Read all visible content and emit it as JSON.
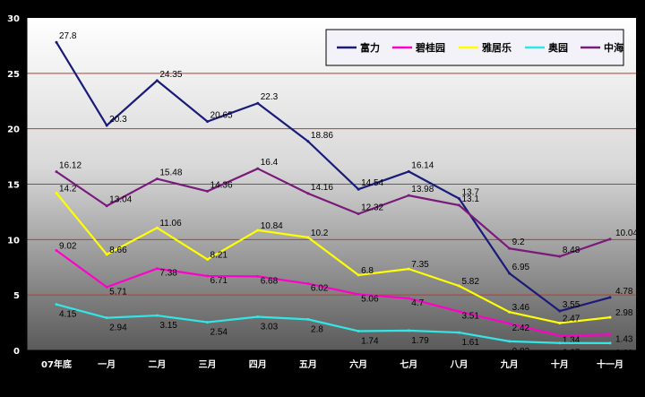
{
  "chart_data": {
    "type": "line",
    "categories": [
      "07年底",
      "一月",
      "二月",
      "三月",
      "四月",
      "五月",
      "六月",
      "七月",
      "八月",
      "九月",
      "十月",
      "十一月"
    ],
    "yticks": [
      0,
      5,
      10,
      15,
      20,
      25,
      30
    ],
    "ylim": [
      0,
      30
    ],
    "grid": true,
    "legend": "top-right",
    "series": [
      {
        "name": "富力",
        "color": "#1a1a7a",
        "values": [
          27.8,
          20.3,
          24.35,
          20.65,
          22.3,
          18.86,
          14.54,
          16.14,
          13.7,
          6.95,
          3.55,
          4.78
        ]
      },
      {
        "name": "碧桂园",
        "color": "#ff00cc",
        "values": [
          9.02,
          5.71,
          7.38,
          6.71,
          6.68,
          6.02,
          5.06,
          4.7,
          3.51,
          2.42,
          1.34,
          1.43
        ]
      },
      {
        "name": "雅居乐",
        "color": "#ffff00",
        "values": [
          14.2,
          8.66,
          11.06,
          8.21,
          10.84,
          10.2,
          6.8,
          7.35,
          5.82,
          3.46,
          2.47,
          2.98
        ]
      },
      {
        "name": "奥园",
        "color": "#33e6e6",
        "values": [
          4.15,
          2.94,
          3.15,
          2.54,
          3.03,
          2.8,
          1.74,
          1.79,
          1.61,
          0.82,
          0.67,
          0.66
        ]
      },
      {
        "name": "中海",
        "color": "#7a1a7a",
        "values": [
          16.12,
          13.04,
          15.48,
          14.36,
          16.4,
          14.16,
          12.32,
          13.98,
          13.1,
          9.2,
          8.48,
          10.04
        ]
      }
    ]
  }
}
